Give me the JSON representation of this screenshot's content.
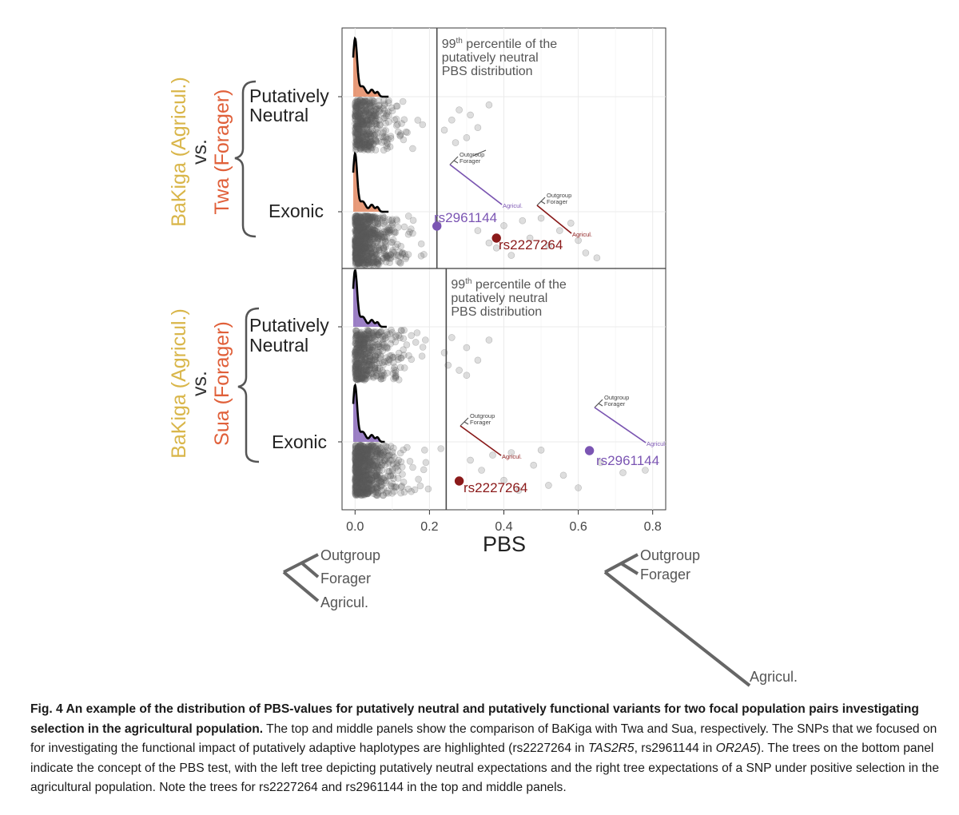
{
  "figure": {
    "panels": [
      {
        "id": "twa",
        "pop_agri": "BaKiga (Agricul.)",
        "vs": "vs.",
        "pop_forager": "Twa (Forager)",
        "rows": [
          "Putatively Neutral",
          "Exonic"
        ],
        "threshold_pbs": 0.22,
        "threshold_label": [
          "99th percentile of the",
          "putatively  neutral",
          "PBS distribution"
        ],
        "snps": [
          {
            "id": "rs2961144",
            "pbs": 0.22,
            "color": "#7b55b3"
          },
          {
            "id": "rs2227264",
            "pbs": 0.38,
            "color": "#8b1a1a"
          }
        ]
      },
      {
        "id": "sua",
        "pop_agri": "BaKiga (Agricul.)",
        "vs": "vs.",
        "pop_forager": "Sua (Forager)",
        "rows": [
          "Putatively Neutral",
          "Exonic"
        ],
        "threshold_pbs": 0.245,
        "threshold_label": [
          "99th percentile of the",
          "putatively neutral",
          "PBS distribution"
        ],
        "snps": [
          {
            "id": "rs2227264",
            "pbs": 0.28,
            "color": "#8b1a1a"
          },
          {
            "id": "rs2961144",
            "pbs": 0.63,
            "color": "#7b55b3"
          }
        ]
      }
    ],
    "row_label_neutral_1": "Putatively",
    "row_label_neutral_2": "Neutral",
    "row_label_exonic": "Exonic",
    "superscript": "th",
    "x_axis_title": "PBS",
    "x_ticks": [
      "0.0",
      "0.2",
      "0.4",
      "0.6",
      "0.8"
    ],
    "x_tick_values": [
      0.0,
      0.2,
      0.4,
      0.6,
      0.8
    ],
    "x_range": [
      -0.035,
      0.835
    ],
    "tree_labels": {
      "outgroup": "Outgroup",
      "forager": "Forager",
      "agricul": "Agricul."
    },
    "colors": {
      "agri": "#d9b64a",
      "forager": "#e0603a",
      "points": "#595959",
      "neutral_fill_twa": "#e07a4e",
      "neutral_fill_sua": "#7b55b3",
      "purple": "#7b55b3",
      "darkred": "#8b1a1a"
    }
  },
  "caption": {
    "bold": "Fig. 4 An example of the distribution of PBS-values for putatively neutral and putatively functional variants for two focal population pairs investigating selection in the agricultural population.",
    "t1": " The top and middle panels show the comparison of BaKiga with Twa and Sua, respectively. The SNPs that we focused on for investigating the functional impact of putatively adaptive haplotypes are highlighted (rs2227264 in ",
    "gene1": "TAS2R5",
    "t2": ", rs2961144 in ",
    "gene2": "OR2A5",
    "t3": "). The trees on the bottom panel indicate the concept of the PBS test, with the left tree depicting putatively neutral expectations and the right tree expectations of a SNP under positive selection in the agricultural population. Note the trees for rs2227264 and rs2961144 in the top and middle panels."
  },
  "chart_data": {
    "type": "scatter",
    "title": "",
    "xlabel": "PBS",
    "ylabel": "",
    "xlim": [
      0.0,
      0.8
    ],
    "panels": [
      {
        "comparison": "BaKiga (Agricul.) vs. Twa (Forager)",
        "categories": [
          "Putatively Neutral",
          "Exonic"
        ],
        "threshold_99th_percentile": 0.22,
        "highlighted": [
          {
            "snp": "rs2961144",
            "pbs": 0.22
          },
          {
            "snp": "rs2227264",
            "pbs": 0.38
          }
        ],
        "max_pbs_putatively_neutral": 0.36,
        "max_pbs_exonic": 0.65
      },
      {
        "comparison": "BaKiga (Agricul.) vs. Sua (Forager)",
        "categories": [
          "Putatively Neutral",
          "Exonic"
        ],
        "threshold_99th_percentile": 0.245,
        "highlighted": [
          {
            "snp": "rs2227264",
            "pbs": 0.28
          },
          {
            "snp": "rs2961144",
            "pbs": 0.63
          }
        ],
        "max_pbs_putatively_neutral": 0.37,
        "max_pbs_exonic": 0.78
      }
    ]
  }
}
